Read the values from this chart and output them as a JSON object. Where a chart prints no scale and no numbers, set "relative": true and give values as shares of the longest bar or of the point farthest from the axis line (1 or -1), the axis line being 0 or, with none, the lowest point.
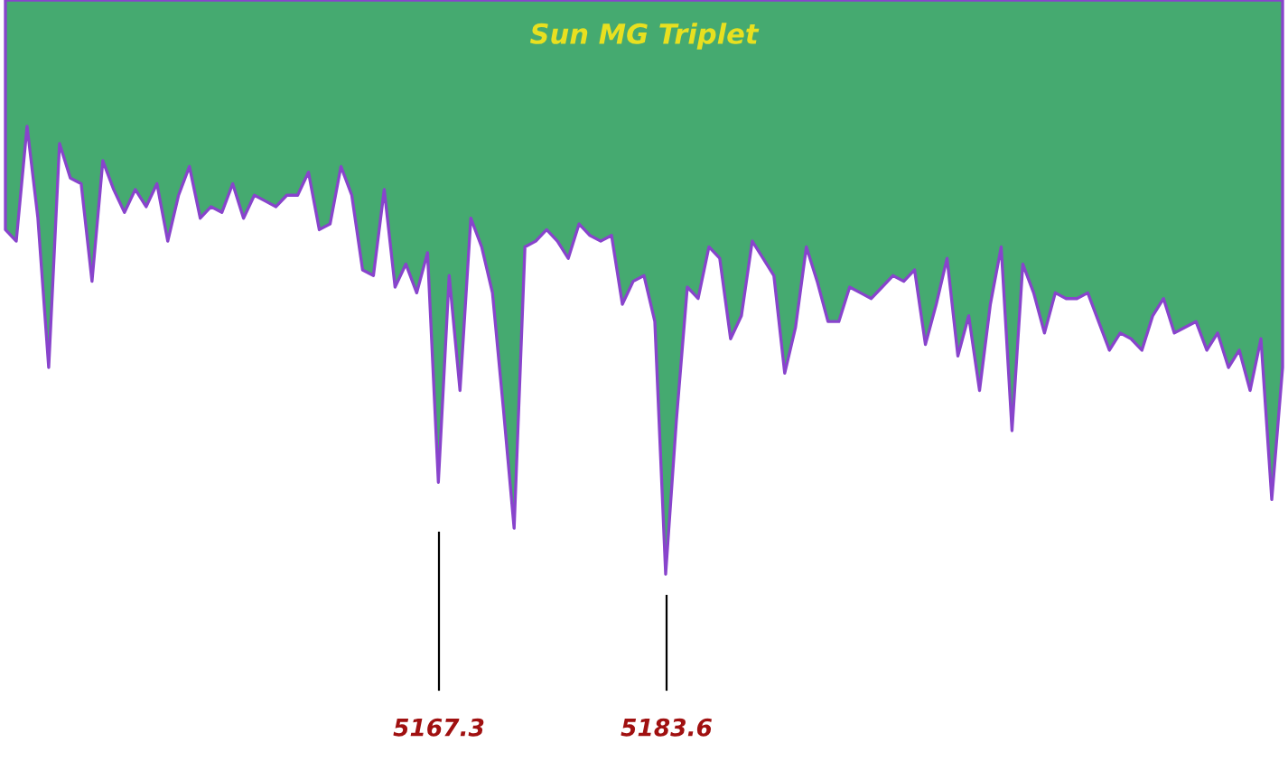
{
  "chart_data": {
    "type": "area",
    "title": "Sun MG Triplet",
    "relative": true,
    "categories": [
      null,
      null,
      null,
      null,
      null,
      null,
      null,
      null,
      null,
      null,
      null,
      null,
      null,
      null,
      null,
      null,
      null,
      null,
      null,
      null,
      null,
      null,
      null,
      null,
      null,
      null,
      null,
      null,
      null,
      null,
      null,
      null,
      null,
      null,
      null,
      null,
      null,
      null,
      null,
      null,
      null,
      null,
      null,
      null,
      null,
      null,
      null,
      null,
      null,
      null,
      null,
      null,
      null,
      null,
      null,
      null,
      null,
      null,
      null,
      null,
      null,
      null,
      null,
      null,
      null,
      null,
      null,
      null,
      null,
      null,
      null,
      null,
      null,
      null,
      null,
      null,
      null,
      null,
      null,
      null,
      null,
      null,
      null,
      null,
      null,
      null,
      null,
      null,
      null,
      null,
      null,
      null,
      null,
      null,
      null,
      null,
      null,
      null,
      null,
      null,
      null,
      null,
      null,
      null,
      null,
      null,
      null,
      null,
      null,
      null,
      null,
      null,
      null,
      null,
      null,
      null,
      null,
      null,
      null
    ],
    "series": [
      {
        "color": "#45aa70",
        "values": [
          -0.4,
          -0.42,
          -0.22,
          -0.38,
          -0.64,
          -0.25,
          -0.31,
          -0.32,
          -0.49,
          -0.28,
          -0.33,
          -0.37,
          -0.33,
          -0.36,
          -0.32,
          -0.42,
          -0.34,
          -0.29,
          -0.38,
          -0.36,
          -0.37,
          -0.32,
          -0.38,
          -0.34,
          -0.35,
          -0.36,
          -0.34,
          -0.34,
          -0.3,
          -0.4,
          -0.39,
          -0.29,
          -0.34,
          -0.47,
          -0.48,
          -0.33,
          -0.5,
          -0.46,
          -0.51,
          -0.44,
          -0.84,
          -0.48,
          -0.68,
          -0.38,
          -0.43,
          -0.51,
          -0.71,
          -0.92,
          -0.43,
          -0.42,
          -0.4,
          -0.42,
          -0.45,
          -0.39,
          -0.41,
          -0.42,
          -0.41,
          -0.53,
          -0.49,
          -0.48,
          -0.56,
          -1,
          -0.73,
          -0.5,
          -0.52,
          -0.43,
          -0.45,
          -0.59,
          -0.55,
          -0.42,
          -0.45,
          -0.48,
          -0.65,
          -0.57,
          -0.43,
          -0.49,
          -0.56,
          -0.56,
          -0.5,
          -0.51,
          -0.52,
          -0.5,
          -0.48,
          -0.49,
          -0.47,
          -0.6,
          -0.53,
          -0.45,
          -0.62,
          -0.55,
          -0.68,
          -0.53,
          -0.43,
          -0.75,
          -0.46,
          -0.51,
          -0.58,
          -0.51,
          -0.52,
          -0.52,
          -0.51,
          -0.56,
          -0.61,
          -0.58,
          -0.59,
          -0.61,
          -0.55,
          -0.52,
          -0.58,
          -0.57,
          -0.56,
          -0.61,
          -0.58,
          -0.64,
          -0.61,
          -0.68,
          -0.59,
          -0.87,
          -0.64
        ]
      }
    ],
    "annotations": [
      "5167.3",
      "5183.6"
    ]
  }
}
